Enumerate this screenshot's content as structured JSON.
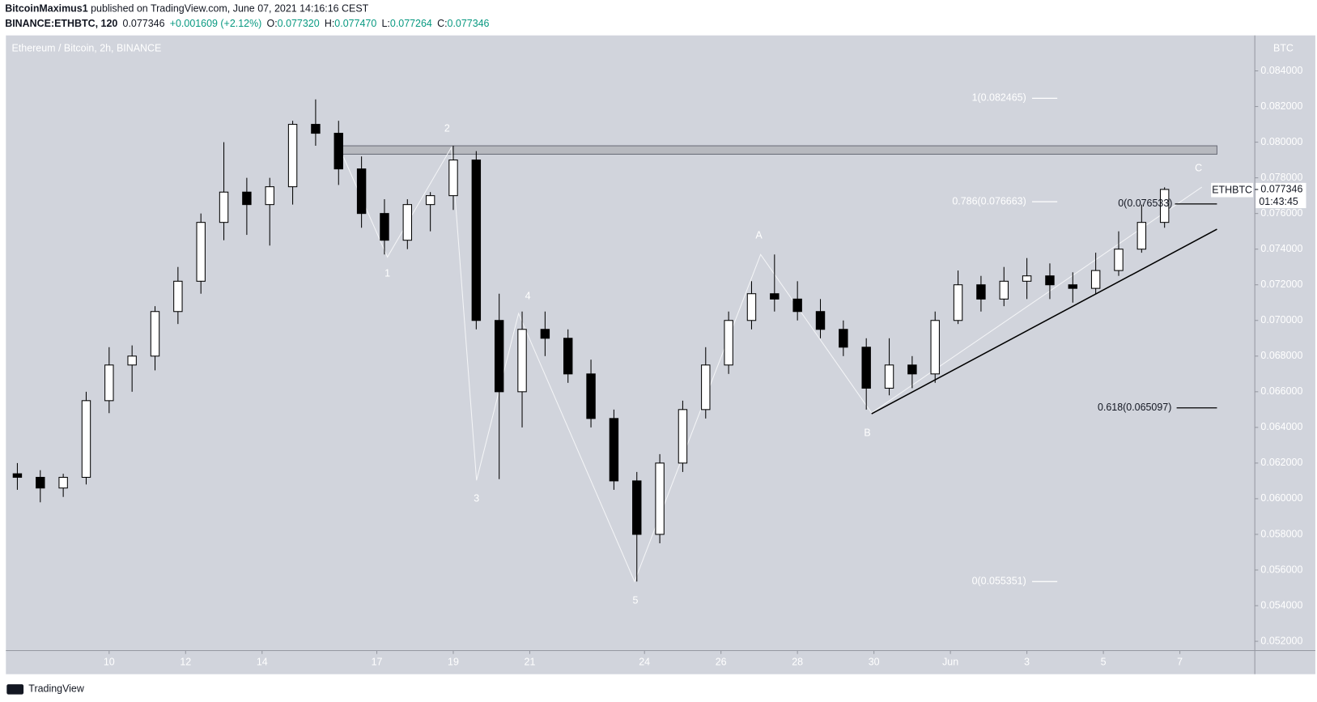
{
  "header": {
    "author": "BitcoinMaximus1",
    "published": " published on TradingView.com, June 07, 2021 14:16:16 CEST",
    "symbol": "BINANCE:ETHBTC, 120",
    "last": "0.077346",
    "change": "+0.001609 (+2.12%)",
    "o_label": "O:",
    "o": "0.077320",
    "h_label": "H:",
    "h": "0.077470",
    "l_label": "L:",
    "l": "0.077264",
    "c_label": "C:",
    "c": "0.077346"
  },
  "chart_data": {
    "type": "candlestick",
    "title": "Ethereum / Bitcoin, 2h, BINANCE",
    "y_unit": "BTC",
    "grid": false,
    "up_color": "#ffffff",
    "down_color": "#000000",
    "x": [
      7.6,
      8.2,
      8.8,
      9.4,
      10.0,
      10.6,
      11.2,
      11.8,
      12.4,
      13.0,
      13.6,
      14.2,
      14.8,
      15.4,
      16.0,
      16.6,
      17.2,
      17.8,
      18.4,
      19.0,
      19.6,
      20.2,
      20.8,
      21.4,
      22.0,
      22.6,
      23.2,
      23.8,
      24.4,
      25.0,
      25.6,
      26.2,
      26.8,
      27.4,
      28.0,
      28.6,
      29.2,
      29.8,
      30.4,
      31.0,
      31.6,
      32.2,
      32.8,
      33.4,
      34.0,
      34.6,
      35.2,
      35.8,
      36.4,
      37.0,
      37.6
    ],
    "open": [
      0.0614,
      0.0612,
      0.0606,
      0.0612,
      0.0655,
      0.0675,
      0.068,
      0.0705,
      0.0722,
      0.0755,
      0.0772,
      0.0765,
      0.0775,
      0.081,
      0.0805,
      0.0785,
      0.076,
      0.0745,
      0.0765,
      0.077,
      0.079,
      0.07,
      0.066,
      0.0695,
      0.069,
      0.067,
      0.0645,
      0.061,
      0.058,
      0.062,
      0.065,
      0.0675,
      0.07,
      0.0715,
      0.0712,
      0.0705,
      0.0695,
      0.0685,
      0.0662,
      0.0675,
      0.067,
      0.07,
      0.072,
      0.0712,
      0.0722,
      0.0725,
      0.072,
      0.0718,
      0.0728,
      0.074,
      0.0755
    ],
    "high": [
      0.062,
      0.0616,
      0.0614,
      0.066,
      0.0685,
      0.0686,
      0.0708,
      0.073,
      0.076,
      0.08,
      0.078,
      0.078,
      0.0812,
      0.0824,
      0.0812,
      0.0792,
      0.0768,
      0.0768,
      0.0772,
      0.0798,
      0.0795,
      0.0715,
      0.0705,
      0.0705,
      0.0695,
      0.0678,
      0.065,
      0.0615,
      0.0625,
      0.0655,
      0.0685,
      0.0705,
      0.0722,
      0.0737,
      0.0722,
      0.0712,
      0.07,
      0.069,
      0.069,
      0.068,
      0.0705,
      0.0728,
      0.0725,
      0.073,
      0.0735,
      0.0732,
      0.0727,
      0.0738,
      0.075,
      0.0765,
      0.07747
    ],
    "low": [
      0.0605,
      0.0598,
      0.0601,
      0.0608,
      0.0648,
      0.066,
      0.0672,
      0.0698,
      0.0715,
      0.0745,
      0.0748,
      0.0742,
      0.0765,
      0.0798,
      0.0776,
      0.0752,
      0.0737,
      0.074,
      0.075,
      0.0762,
      0.0695,
      0.0611,
      0.064,
      0.068,
      0.0665,
      0.064,
      0.0605,
      0.05535,
      0.0575,
      0.0615,
      0.0645,
      0.067,
      0.0695,
      0.0705,
      0.07,
      0.069,
      0.068,
      0.065,
      0.0658,
      0.0662,
      0.0665,
      0.0698,
      0.0705,
      0.0708,
      0.0712,
      0.0712,
      0.071,
      0.0715,
      0.0725,
      0.0738,
      0.0752
    ],
    "close": [
      0.0612,
      0.0606,
      0.0612,
      0.0655,
      0.0675,
      0.068,
      0.0705,
      0.0722,
      0.0755,
      0.0772,
      0.0765,
      0.0775,
      0.081,
      0.0805,
      0.0785,
      0.076,
      0.0745,
      0.0765,
      0.077,
      0.079,
      0.07,
      0.066,
      0.0695,
      0.069,
      0.067,
      0.0645,
      0.061,
      0.058,
      0.062,
      0.065,
      0.0675,
      0.07,
      0.0715,
      0.0712,
      0.0705,
      0.0695,
      0.0685,
      0.0662,
      0.0675,
      0.067,
      0.07,
      0.072,
      0.0712,
      0.0722,
      0.0725,
      0.072,
      0.0718,
      0.0728,
      0.074,
      0.0755,
      0.07735
    ],
    "xlim": [
      7.3,
      39.96
    ],
    "xticks": [
      10,
      12,
      14,
      17,
      19,
      21,
      24,
      26,
      28,
      30,
      {
        "value": 32,
        "label": "Jun"
      },
      {
        "value": 34,
        "label": "3"
      },
      {
        "value": 36,
        "label": "5"
      },
      {
        "value": 38,
        "label": "7"
      }
    ],
    "ylim": [
      0.05148,
      0.08599
    ],
    "yticks": [
      {
        "value": 0.052,
        "label": "0.052000"
      },
      {
        "value": 0.054,
        "label": "0.054000"
      },
      {
        "value": 0.056,
        "label": "0.056000"
      },
      {
        "value": 0.058,
        "label": "0.058000"
      },
      {
        "value": 0.06,
        "label": "0.060000"
      },
      {
        "value": 0.062,
        "label": "0.062000"
      },
      {
        "value": 0.064,
        "label": "0.064000"
      },
      {
        "value": 0.066,
        "label": "0.066000"
      },
      {
        "value": 0.068,
        "label": "0.068000"
      },
      {
        "value": 0.07,
        "label": "0.070000"
      },
      {
        "value": 0.072,
        "label": "0.072000"
      },
      {
        "value": 0.074,
        "label": "0.074000"
      },
      {
        "value": 0.076,
        "label": "0.076000"
      },
      {
        "value": 0.078,
        "label": "0.078000"
      },
      {
        "value": 0.08,
        "label": "0.080000"
      },
      {
        "value": 0.082,
        "label": "0.082000"
      },
      {
        "value": 0.084,
        "label": "0.084000"
      }
    ],
    "fib_levels": [
      {
        "label": "1(0.082465)",
        "value": 0.082465,
        "color": "#ffffff"
      },
      {
        "label": "0.786(0.076663)",
        "value": 0.076663,
        "color": "#ffffff"
      },
      {
        "label": "0(0.055351)",
        "value": 0.055351,
        "color": "#ffffff"
      },
      {
        "label": "0.618(0.065097)",
        "value": 0.065097,
        "color": "#000000"
      },
      {
        "label": "0(0.076533)",
        "value": 0.076533,
        "color": "#000000"
      }
    ],
    "wave_labels": [
      "1",
      "2",
      "3",
      "4",
      "5",
      "A",
      "B",
      "C"
    ],
    "price_tag": {
      "symbol": "ETHBTC",
      "value": 0.077346,
      "label": "0.077346",
      "countdown": "01:43:45"
    }
  },
  "footer": {
    "brand": "TradingView"
  }
}
